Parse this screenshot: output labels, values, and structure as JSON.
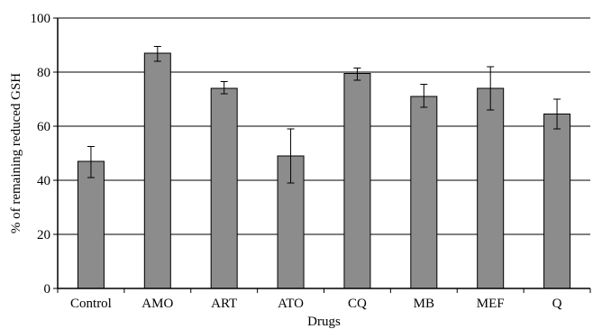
{
  "chart_data": {
    "type": "bar",
    "xlabel": "Drugs",
    "ylabel": "% of remaining reduced GSH",
    "ylim": [
      0,
      100
    ],
    "yticks": [
      0,
      20,
      40,
      60,
      80,
      100
    ],
    "grid": true,
    "categories": [
      "Control",
      "AMO",
      "ART",
      "ATO",
      "CQ",
      "MB",
      "MEF",
      "Q"
    ],
    "values": [
      47,
      87,
      74,
      49,
      79.5,
      71,
      74,
      64.5
    ],
    "error_low": [
      41,
      84,
      72,
      39,
      77,
      67,
      66,
      59
    ],
    "error_high": [
      52.5,
      89.5,
      76.5,
      59,
      81.5,
      75.5,
      82,
      70
    ],
    "colors": {
      "bar_fill": "#8c8c8c",
      "bar_stroke": "#000000",
      "grid": "#000000"
    }
  }
}
